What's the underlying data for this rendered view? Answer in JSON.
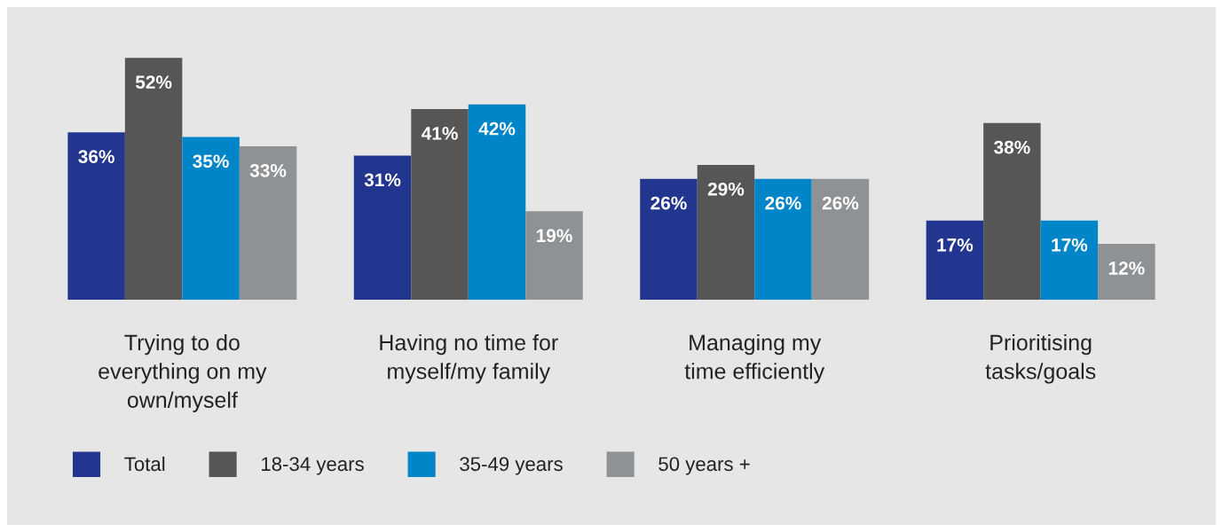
{
  "chart_data": {
    "type": "bar",
    "categories": [
      "Trying to do\neverything on my\nown/myself",
      "Having no time for\nmyself/my family",
      "Managing my\ntime efficiently",
      "Prioritising\ntasks/goals"
    ],
    "series": [
      {
        "name": "Total",
        "color": "#22368f",
        "values": [
          36,
          31,
          26,
          17
        ],
        "value_labels": [
          "36%",
          "31%",
          "26%",
          "17%"
        ]
      },
      {
        "name": "18-34 years",
        "color": "#575656",
        "values": [
          52,
          41,
          29,
          38
        ],
        "value_labels": [
          "52%",
          "41%",
          "29%",
          "38%"
        ]
      },
      {
        "name": "35-49 years",
        "color": "#0085c9",
        "values": [
          35,
          42,
          26,
          17
        ],
        "value_labels": [
          "35%",
          "42%",
          "26%",
          "17%"
        ]
      },
      {
        "name": "50 years +",
        "color": "#8f9295",
        "values": [
          33,
          19,
          26,
          12
        ],
        "value_labels": [
          "33%",
          "19%",
          "26%",
          "12%"
        ]
      }
    ],
    "grid": false,
    "legend": "bottom left"
  }
}
